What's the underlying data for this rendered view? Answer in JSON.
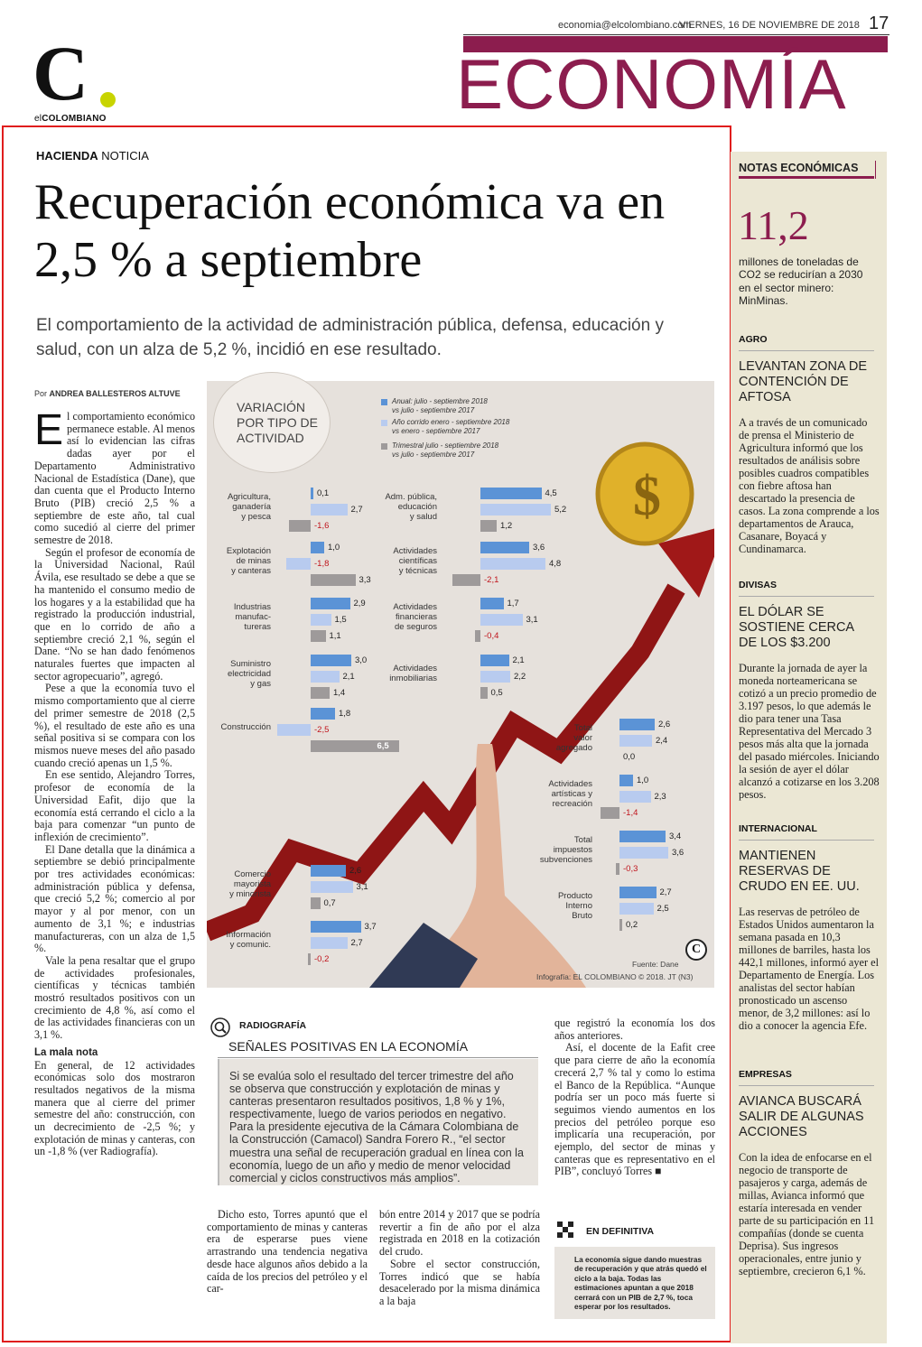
{
  "header": {
    "email": "economia@elcolombiano.com",
    "date": "VIERNES, 16 DE NOVIEMBRE DE 2018",
    "page": "17",
    "section": "ECONOMÍA",
    "logo_letter": "C",
    "logo_name_a": "el",
    "logo_name_b": "COLOMBIANO"
  },
  "article": {
    "kicker_a": "HACIENDA",
    "kicker_b": " NOTICIA",
    "headline": "Recuperación económica va en 2,5 % a septiembre",
    "deck": "El comportamiento de la actividad de administración pública, defensa, educación y salud, con un alza de 5,2 %, incidió en ese resultado.",
    "byline_prefix": "Por ",
    "byline_name": "ANDREA BALLESTEROS ALTUVE",
    "dropcap": "E",
    "col1": [
      "l comportamiento económico permanece estable. Al menos así lo evidencian las cifras dadas ayer por el Departamento Administrativo Nacional de Estadística (Dane), que dan cuenta que el Producto Interno Bruto (PIB) creció 2,5 % a septiembre de este año, tal cual como sucedió al cierre del primer semestre de 2018.",
      "Según el profesor de economía de la Universidad Nacional, Raúl Ávila, ese resultado se debe a que se ha mantenido el consumo medio de los hogares y a la estabilidad que ha registrado la producción industrial, que en lo corrido de año a septiembre creció 2,1 %, según el Dane. “No se han dado fenómenos naturales fuertes que impacten al sector agropecuario”, agregó.",
      "Pese a que la economía tuvo el mismo comportamiento que al cierre del primer semestre de 2018 (2,5 %), el resultado de este año es una señal positiva si se compara con los mismos nueve meses del año pasado cuando creció apenas un 1,5 %.",
      "En ese sentido, Alejandro Torres, profesor de economía de la Universidad Eafit, dijo que la economía está cerrando el ciclo a la baja para comenzar “un punto de inflexión de crecimiento”.",
      "El Dane detalla que la dinámica a septiembre se debió principalmente por tres actividades económicas: administración pública y defensa, que creció 5,2 %; comercio al por mayor y al por menor, con un aumento de 3,1 %; e industrias manufactureras, con un alza de 1,5 %.",
      "Vale la pena resaltar que el grupo de actividades profesionales, científicas y técnicas también mostró resultados positivos con un crecimiento de 4,8 %, así como el de las actividades financieras con un 3,1 %."
    ],
    "subhead": "La mala nota",
    "col1_end": "En general, de 12 actividades económicas solo dos mostraron resultados negativos de la misma manera que al cierre del primer semestre del año: construcción, con un decrecimiento de -2,5 %; y explotación de minas y canteras, con un -1,8 % (ver Radiografía).",
    "col3a": "Dicho esto, Torres apuntó que el comportamiento de minas y canteras era de esperarse pues viene arrastrando una tendencia negativa desde hace algunos años debido a la caída de los precios del petróleo y el car-",
    "col3b": "bón entre 2014 y 2017 que se podría revertir a fin de año por el alza registrada en 2018 en la cotización del crudo.",
    "col3b_p2": "Sobre el sector construcción, Torres indicó que se había desacelerado por la misma dinámica a la baja",
    "col4_p1": "que registró la economía los dos años anteriores.",
    "col4_p2": "Así, el docente de la Eafit cree que para cierre de año la economía crecerá 2,7 % tal y como lo estima el Banco de la República. “Aunque podría ser un poco más fuerte si seguimos viendo aumentos en los precios del petróleo porque eso implicaría una recuperación, por ejemplo, del sector de minas y canteras que es representativo en el PIB”, concluyó Torres ■"
  },
  "radiografia": {
    "label": "RADIOGRAFÍA",
    "title": "SEÑALES POSITIVAS EN LA ECONOMÍA",
    "text": "Si se evalúa solo el resultado del tercer trimestre del año se observa que construcción y explotación de minas y canteras presentaron resultados positivos, 1,8 % y 1%, respectivamente, luego de varios periodos en negativo. Para la presidente ejecutiva de la Cámara Colombiana de la Construcción (Camacol) Sandra Forero R., “el sector muestra una señal de recuperación gradual en línea con la economía, luego de un año y medio de menor velocidad comercial y ciclos constructivos más amplios”."
  },
  "en_definitiva": {
    "label": "EN DEFINITIVA",
    "text": "La economía sigue dando muestras de recuperación y que atrás quedó el ciclo a la baja. Todas las estimaciones apuntan a que 2018 cerrará con un PIB de 2,7 %, toca esperar por los resultados."
  },
  "chart_data": {
    "type": "bar",
    "title": "VARIACIÓN POR TIPO DE ACTIVIDAD",
    "series": [
      {
        "name": "Anual: julio - septiembre 2018 vs julio - septiembre 2017",
        "color": "#5b93d6"
      },
      {
        "name": "Año corrido enero - septiembre 2018 vs enero - septiembre 2017",
        "color": "#b8cbef"
      },
      {
        "name": "Trimestral julio - septiembre 2018 vs julio - septiembre 2017",
        "color": "#9e9a9a"
      }
    ],
    "legend": [
      {
        "l1": "Anual: julio - septiembre 2018",
        "l2": "vs julio - septiembre 2017"
      },
      {
        "l1": "Año corrido enero - septiembre 2018",
        "l2": "vs enero - septiembre 2017"
      },
      {
        "l1": "Trimestral julio - septiembre 2018",
        "l2": "vs julio - septiembre 2017"
      }
    ],
    "categories": [
      {
        "label": [
          "Agricultura,",
          "ganadería",
          "y pesca"
        ],
        "values": [
          0.1,
          2.7,
          -1.6
        ],
        "text": [
          "0,1",
          "2,7",
          "-1,6"
        ]
      },
      {
        "label": [
          "Explotación",
          "de minas",
          "y canteras"
        ],
        "values": [
          1.0,
          -1.8,
          3.3
        ],
        "text": [
          "1,0",
          "-1,8",
          "3,3"
        ]
      },
      {
        "label": [
          "Industrias",
          "manufac-",
          "tureras"
        ],
        "values": [
          2.9,
          1.5,
          1.1
        ],
        "text": [
          "2,9",
          "1,5",
          "1,1"
        ]
      },
      {
        "label": [
          "Suministro",
          "electricidad",
          "y gas"
        ],
        "values": [
          3.0,
          2.1,
          1.4
        ],
        "text": [
          "3,0",
          "2,1",
          "1,4"
        ]
      },
      {
        "label": [
          "Construcción"
        ],
        "values": [
          1.8,
          -2.5,
          6.5
        ],
        "text": [
          "1,8",
          "-2,5",
          "6,5"
        ]
      },
      {
        "label": [
          "Adm. pública,",
          "educación",
          "y salud"
        ],
        "values": [
          4.5,
          5.2,
          1.2
        ],
        "text": [
          "4,5",
          "5,2",
          "1,2"
        ]
      },
      {
        "label": [
          "Actividades",
          "científicas",
          "y técnicas"
        ],
        "values": [
          3.6,
          4.8,
          -2.1
        ],
        "text": [
          "3,6",
          "4,8",
          "-2,1"
        ]
      },
      {
        "label": [
          "Actividades",
          "financieras",
          "de seguros"
        ],
        "values": [
          1.7,
          3.1,
          -0.4
        ],
        "text": [
          "1,7",
          "3,1",
          "-0,4"
        ]
      },
      {
        "label": [
          "Actividades",
          "inmobiliarias"
        ],
        "values": [
          2.1,
          2.2,
          0.5
        ],
        "text": [
          "2,1",
          "2,2",
          "0,5"
        ]
      },
      {
        "label": [
          "Total",
          "valor",
          "agregado"
        ],
        "values": [
          2.6,
          2.4,
          0.0
        ],
        "text": [
          "2,6",
          "2,4",
          "0,0"
        ]
      },
      {
        "label": [
          "Actividades",
          "artísticas y",
          "recreación"
        ],
        "values": [
          1.0,
          2.3,
          -1.4
        ],
        "text": [
          "1,0",
          "2,3",
          "-1,4"
        ]
      },
      {
        "label": [
          "Total",
          "impuestos",
          "subvenciones"
        ],
        "values": [
          3.4,
          3.6,
          -0.3
        ],
        "text": [
          "3,4",
          "3,6",
          "-0,3"
        ]
      },
      {
        "label": [
          "Producto",
          "Interno",
          "Bruto"
        ],
        "values": [
          2.7,
          2.5,
          0.2
        ],
        "text": [
          "2,7",
          "2,5",
          "0,2"
        ]
      },
      {
        "label": [
          "Comercio",
          "mayorista",
          "y minorista"
        ],
        "values": [
          2.6,
          3.1,
          0.7
        ],
        "text": [
          "2,6",
          "3,1",
          "0,7"
        ]
      },
      {
        "label": [
          "Información",
          "y comunic."
        ],
        "values": [
          3.7,
          2.7,
          -0.2
        ],
        "text": [
          "3,7",
          "2,7",
          "-0,2"
        ]
      }
    ],
    "source": "Fuente: Dane",
    "credit": "Infografía: EL COLOMBIANO © 2018. JT (N3)"
  },
  "sidebar": {
    "title": "NOTAS ECONÓMICAS",
    "big_number": "11,2",
    "big_text": "millones de toneladas de CO2 se reducirían a 2030 en el sector minero: MinMinas.",
    "items": [
      {
        "tag": "AGRO",
        "head": "LEVANTAN ZONA DE CONTENCIÓN DE AFTOSA",
        "body": "A a través de un comunicado de prensa el Ministerio de Agricultura informó que los resultados de análisis sobre posibles cuadros compatibles con fiebre aftosa han descartado la presencia de casos. La zona comprende a los departamentos de Arauca, Casanare, Boyacá y Cundinamarca."
      },
      {
        "tag": "DIVISAS",
        "head": "EL DÓLAR SE SOSTIENE CERCA DE LOS $3.200",
        "body": "Durante la jornada de ayer la moneda norteamericana se cotizó a un precio promedio de 3.197 pesos, lo que además le dio para tener una Tasa Representativa del Mercado 3 pesos más alta que la jornada del pasado miércoles. Iniciando la sesión de ayer el dólar alcanzó a cotizarse en los 3.208 pesos."
      },
      {
        "tag": "INTERNACIONAL",
        "head": "MANTIENEN RESERVAS DE CRUDO EN EE. UU.",
        "body": "Las reservas de petróleo de Estados Unidos aumentaron la semana pasada en 10,3 millones de barriles, hasta los 442,1 millones, informó ayer el Departamento de Energía. Los analistas del sector habían pronosticado un ascenso menor, de 3,2 millones: así lo dio a conocer la agencia Efe."
      },
      {
        "tag": "EMPRESAS",
        "head": "AVIANCA BUSCARÁ SALIR DE ALGUNAS ACCIONES",
        "body": "Con la idea de enfocarse en el negocio de transporte de pasajeros y carga, además de millas, Avianca informó que estaría interesada en vender parte de su participación en 11 compañías (donde se cuenta Deprisa). Sus ingresos operacionales, entre junio y septiembre, crecieron 6,1 %."
      }
    ]
  }
}
